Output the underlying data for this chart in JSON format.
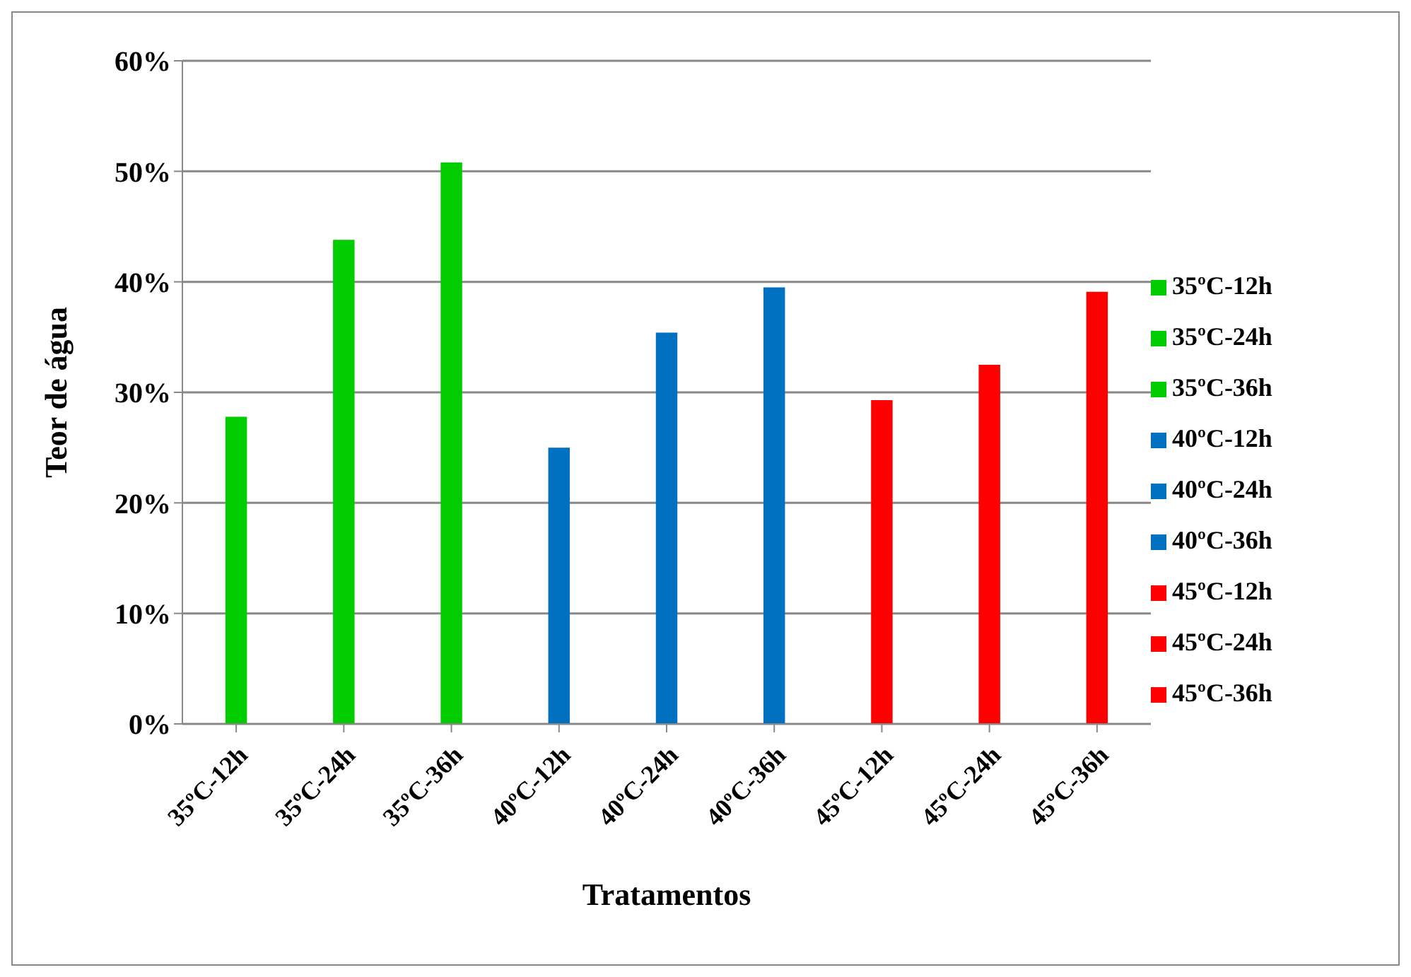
{
  "chart_data": {
    "type": "bar",
    "xlabel": "Tratamentos",
    "ylabel": "Teor de água",
    "stacked": true,
    "categories": [
      "35ºC-12h",
      "35ºC-24h",
      "35ºC-36h",
      "40ºC-12h",
      "40ºC-24h",
      "40ºC-36h",
      "45ºC-12h",
      "45ºC-24h",
      "45ºC-36h"
    ],
    "series": [
      {
        "name": "35ºC-12h",
        "color": "#00cc00",
        "values": [
          27.8,
          null,
          null,
          null,
          null,
          null,
          null,
          null,
          null
        ]
      },
      {
        "name": "35ºC-24h",
        "color": "#00cc00",
        "values": [
          null,
          43.8,
          null,
          null,
          null,
          null,
          null,
          null,
          null
        ]
      },
      {
        "name": "35ºC-36h",
        "color": "#00cc00",
        "values": [
          null,
          null,
          50.8,
          null,
          null,
          null,
          null,
          null,
          null
        ]
      },
      {
        "name": "40ºC-12h",
        "color": "#0070c0",
        "values": [
          null,
          null,
          null,
          25.0,
          null,
          null,
          null,
          null,
          null
        ]
      },
      {
        "name": "40ºC-24h",
        "color": "#0070c0",
        "values": [
          null,
          null,
          null,
          null,
          35.4,
          null,
          null,
          null,
          null
        ]
      },
      {
        "name": "40ºC-36h",
        "color": "#0070c0",
        "values": [
          null,
          null,
          null,
          null,
          null,
          39.5,
          null,
          null,
          null
        ]
      },
      {
        "name": "45ºC-12h",
        "color": "#ff0000",
        "values": [
          null,
          null,
          null,
          null,
          null,
          null,
          29.3,
          null,
          null
        ]
      },
      {
        "name": "45ºC-24h",
        "color": "#ff0000",
        "values": [
          null,
          null,
          null,
          null,
          null,
          null,
          null,
          32.5,
          null
        ]
      },
      {
        "name": "45ºC-36h",
        "color": "#ff0000",
        "values": [
          null,
          null,
          null,
          null,
          null,
          null,
          null,
          null,
          39.1
        ]
      }
    ],
    "ylim": [
      0,
      60
    ],
    "yticks": [
      {
        "value": 0,
        "label": "0%"
      },
      {
        "value": 10,
        "label": "10%"
      },
      {
        "value": 20,
        "label": "20%"
      },
      {
        "value": 30,
        "label": "30%"
      },
      {
        "value": 40,
        "label": "40%"
      },
      {
        "value": 50,
        "label": "50%"
      },
      {
        "value": 60,
        "label": "60%"
      }
    ],
    "grid": "y",
    "legend": "right"
  }
}
